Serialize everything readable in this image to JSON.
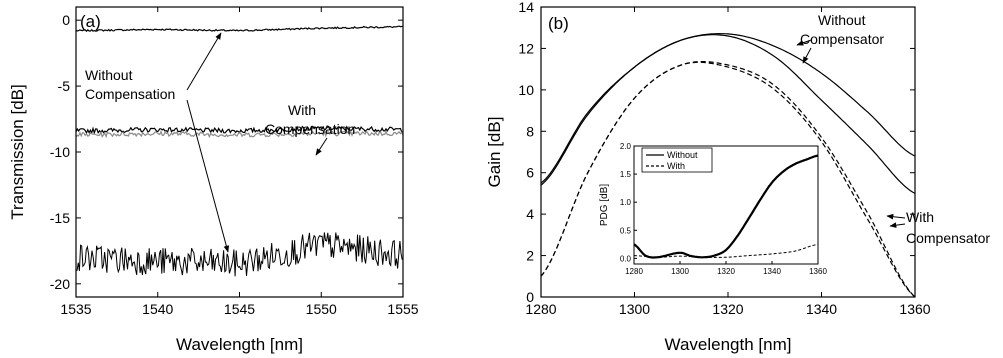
{
  "chart_data": [
    {
      "type": "line",
      "panel_label": "(a)",
      "xlabel": "Wavelength [nm]",
      "ylabel": "Transmission [dB]",
      "xlim": [
        1535,
        1555
      ],
      "ylim": [
        -21,
        1
      ],
      "xticks": [
        1535,
        1540,
        1545,
        1550,
        1555
      ],
      "yticks": [
        0,
        -5,
        -10,
        -15,
        -20
      ],
      "series": [
        {
          "name": "Without Compensation (upper)",
          "x": [
            1535,
            1540,
            1545,
            1550,
            1555
          ],
          "y": [
            -0.8,
            -0.7,
            -0.8,
            -0.6,
            -0.5
          ]
        },
        {
          "name": "With Compensation (A)",
          "x": [
            1535,
            1540,
            1545,
            1550,
            1555
          ],
          "y": [
            -8.4,
            -8.3,
            -8.4,
            -8.2,
            -8.3
          ]
        },
        {
          "name": "With Compensation (B)",
          "x": [
            1535,
            1540,
            1545,
            1550,
            1555
          ],
          "y": [
            -8.7,
            -8.6,
            -8.7,
            -8.6,
            -8.6
          ]
        },
        {
          "name": "Without Compensation (lower)",
          "x": [
            1535,
            1540,
            1545,
            1550,
            1555
          ],
          "y": [
            -18.0,
            -18.3,
            -18.5,
            -17.0,
            -17.8
          ]
        }
      ],
      "annotations": [
        {
          "text": [
            "Without",
            "Compensation"
          ]
        },
        {
          "text": [
            "With",
            "Compensation"
          ]
        }
      ]
    },
    {
      "type": "line",
      "panel_label": "(b)",
      "xlabel": "Wavelength [nm]",
      "ylabel": "Gain [dB]",
      "xlim": [
        1280,
        1360
      ],
      "ylim": [
        0,
        14
      ],
      "xticks": [
        1280,
        1300,
        1320,
        1340,
        1360
      ],
      "yticks": [
        0,
        2,
        4,
        6,
        8,
        10,
        12,
        14
      ],
      "series": [
        {
          "name": "Without Compensator (A)",
          "style": "solid",
          "x": [
            1280,
            1290,
            1300,
            1310,
            1320,
            1330,
            1340,
            1350,
            1360
          ],
          "y": [
            5.5,
            8.9,
            11.1,
            12.4,
            12.7,
            12.1,
            10.8,
            8.9,
            6.8
          ]
        },
        {
          "name": "Without Compensator (B)",
          "style": "solid",
          "x": [
            1280,
            1290,
            1300,
            1310,
            1320,
            1330,
            1340,
            1350,
            1360
          ],
          "y": [
            5.4,
            8.8,
            11.1,
            12.4,
            12.6,
            11.6,
            9.5,
            7.3,
            5.0
          ]
        },
        {
          "name": "With Compensator (A)",
          "style": "dashed",
          "x": [
            1280,
            1290,
            1300,
            1310,
            1320,
            1330,
            1340,
            1350,
            1360
          ],
          "y": [
            1.0,
            6.0,
            9.6,
            11.2,
            11.2,
            10.2,
            7.7,
            4.0,
            0.0
          ]
        },
        {
          "name": "With Compensator (B)",
          "style": "dashed",
          "x": [
            1280,
            1290,
            1300,
            1310,
            1320,
            1330,
            1340,
            1350,
            1360
          ],
          "y": [
            1.0,
            6.0,
            9.6,
            11.2,
            11.1,
            10.0,
            7.5,
            3.7,
            0.0
          ]
        }
      ],
      "annotations": [
        {
          "text": [
            "Without",
            "Compensator"
          ]
        },
        {
          "text": [
            "With",
            "Compensator"
          ]
        }
      ],
      "inset": {
        "type": "line",
        "ylabel": "PDG [dB]",
        "xlim": [
          1280,
          1360
        ],
        "ylim": [
          -0.1,
          2.0
        ],
        "xticks": [
          1280,
          1300,
          1320,
          1340,
          1360
        ],
        "yticks": [
          0.0,
          0.5,
          1.0,
          1.5,
          2.0
        ],
        "legend": [
          "Without",
          "With"
        ],
        "series": [
          {
            "name": "Without",
            "style": "solid",
            "x": [
              1280,
              1285,
              1290,
              1300,
              1305,
              1310,
              1315,
              1320,
              1325,
              1330,
              1335,
              1340,
              1345,
              1350,
              1355,
              1360
            ],
            "y": [
              0.25,
              0.05,
              0.02,
              0.1,
              0.04,
              0.02,
              0.05,
              0.15,
              0.4,
              0.72,
              1.05,
              1.35,
              1.55,
              1.68,
              1.76,
              1.83
            ]
          },
          {
            "name": "With",
            "style": "dashed",
            "x": [
              1280,
              1290,
              1300,
              1310,
              1320,
              1330,
              1340,
              1350,
              1360
            ],
            "y": [
              0.05,
              0.02,
              0.04,
              0.02,
              0.02,
              0.05,
              0.08,
              0.13,
              0.25
            ]
          }
        ]
      }
    }
  ]
}
